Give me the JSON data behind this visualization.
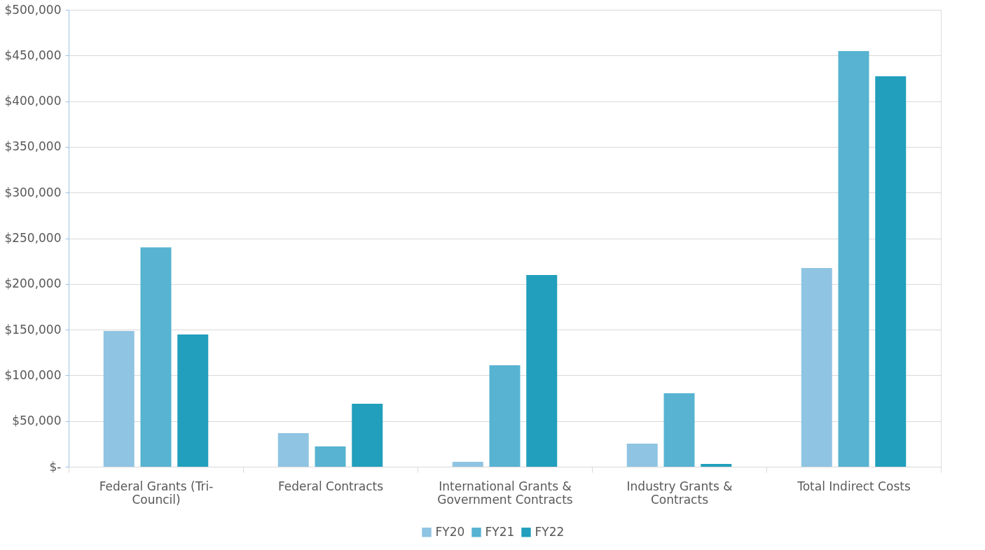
{
  "chart_data": {
    "type": "bar",
    "categories": [
      "Federal Grants (Tri-\nCouncil)",
      "Federal Contracts",
      "International Grants &\nGovernment Contracts",
      "Industry Grants &\nContracts",
      "Total Indirect Costs"
    ],
    "series": [
      {
        "name": "FY20",
        "color": "#8fc4e2",
        "values": [
          148500,
          36800,
          5400,
          25300,
          217500
        ]
      },
      {
        "name": "FY21",
        "color": "#57b3d1",
        "values": [
          240000,
          22200,
          111000,
          80400,
          454800
        ]
      },
      {
        "name": "FY22",
        "color": "#219fbc",
        "values": [
          144700,
          68900,
          209800,
          3000,
          427300
        ]
      }
    ],
    "ylim": [
      0,
      500000
    ],
    "yticks": [
      {
        "value": 0,
        "label": "$-"
      },
      {
        "value": 50000,
        "label": "$50,000"
      },
      {
        "value": 100000,
        "label": "$100,000"
      },
      {
        "value": 150000,
        "label": "$150,000"
      },
      {
        "value": 200000,
        "label": "$200,000"
      },
      {
        "value": 250000,
        "label": "$250,000"
      },
      {
        "value": 300000,
        "label": "$300,000"
      },
      {
        "value": 350000,
        "label": "$350,000"
      },
      {
        "value": 400000,
        "label": "$400,000"
      },
      {
        "value": 450000,
        "label": "$450,000"
      },
      {
        "value": 500000,
        "label": "$500,000"
      }
    ],
    "grid": "y",
    "legend": "bottom"
  }
}
